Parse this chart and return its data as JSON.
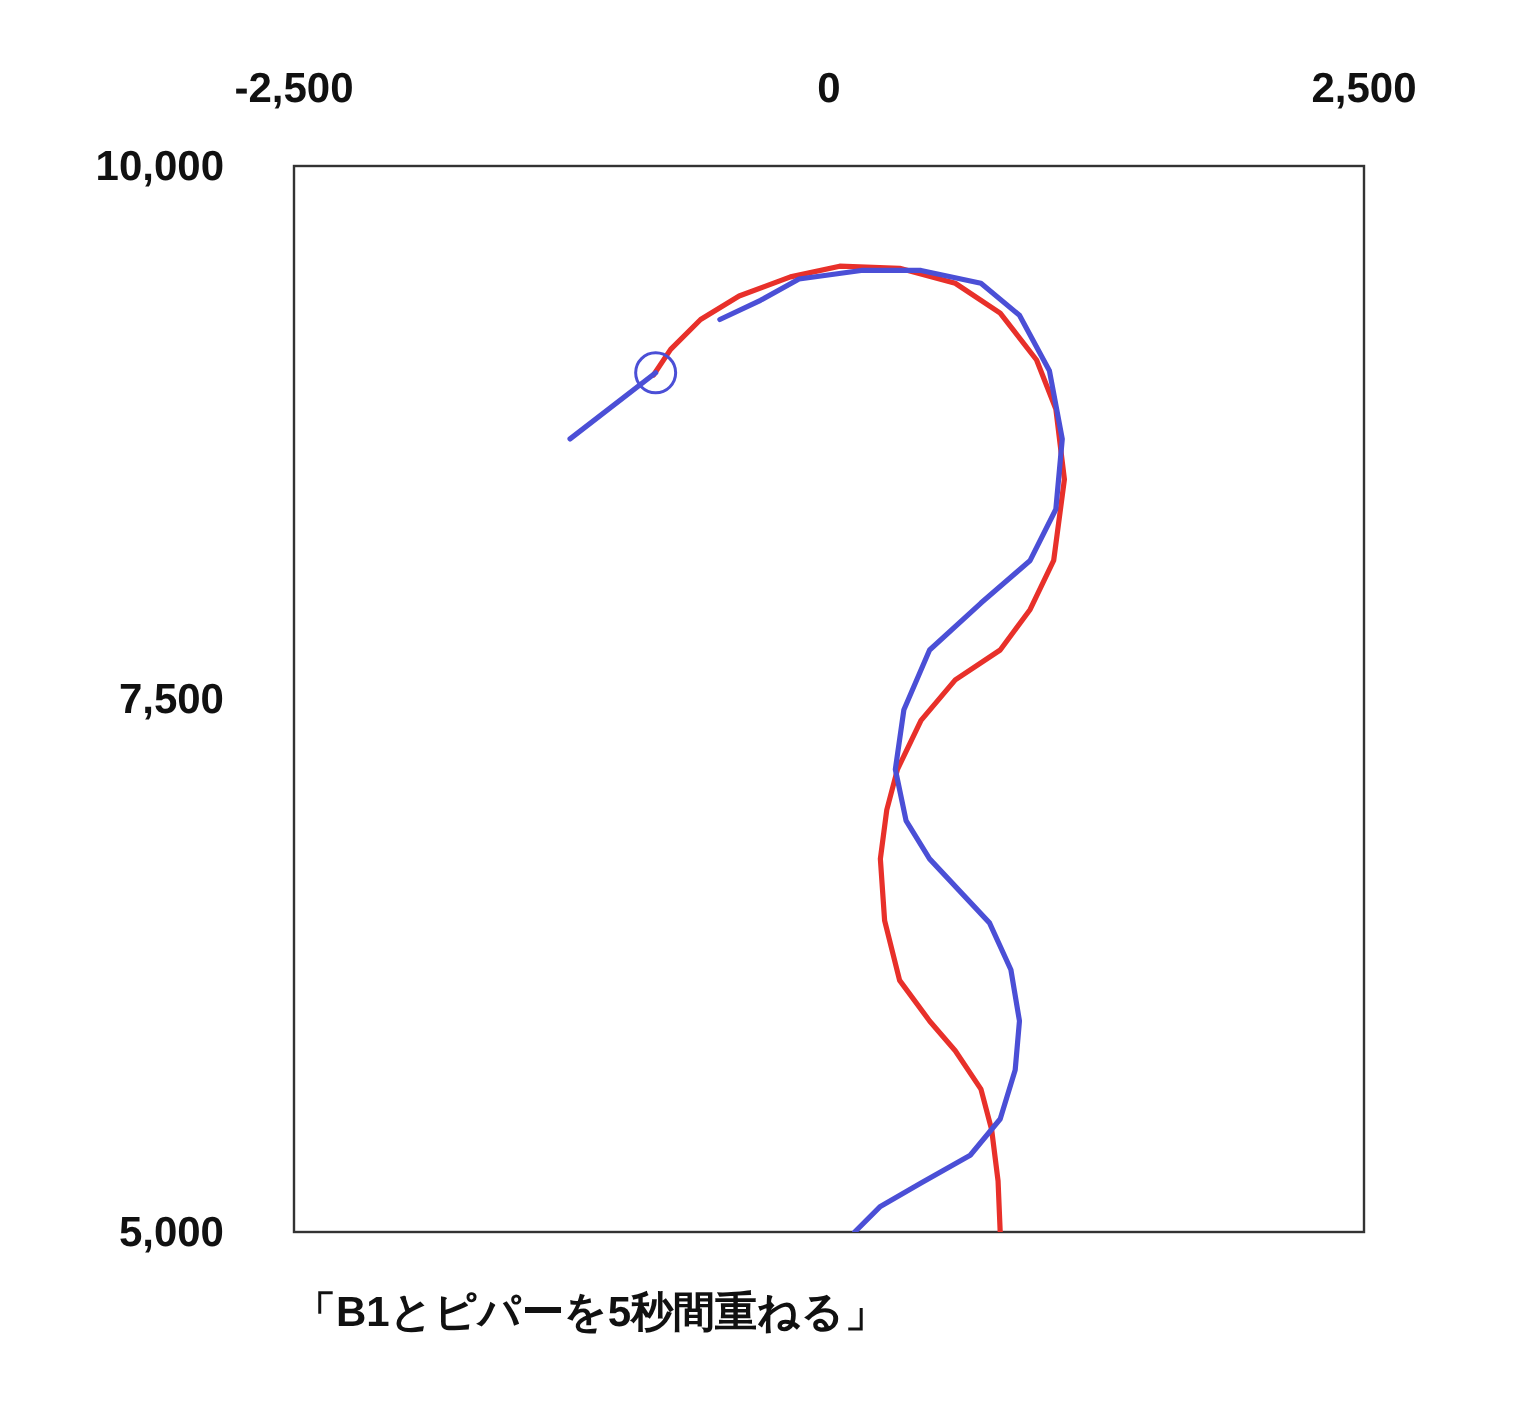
{
  "chart_data": {
    "type": "line",
    "xlim": [
      -2500,
      2500
    ],
    "ylim": [
      5000,
      10000
    ],
    "xticks": [
      {
        "value": -2500,
        "label": "-2,500"
      },
      {
        "value": 0,
        "label": "0"
      },
      {
        "value": 2500,
        "label": "2,500"
      }
    ],
    "yticks": [
      {
        "value": 5000,
        "label": "5,000"
      },
      {
        "value": 7500,
        "label": "7,500"
      },
      {
        "value": 10000,
        "label": "10,000"
      }
    ],
    "series": [
      {
        "color": "#e8302a",
        "x": [
          800,
          790,
          760,
          710,
          590,
          470,
          330,
          260,
          240,
          270,
          320,
          430,
          590,
          800,
          940,
          1050,
          1100,
          1060,
          970,
          800,
          590,
          330,
          50,
          -180,
          -420,
          -600,
          -740,
          -820
        ],
        "values": [
          5000,
          5240,
          5480,
          5670,
          5850,
          5990,
          6180,
          6460,
          6750,
          6980,
          7170,
          7400,
          7590,
          7730,
          7920,
          8150,
          8530,
          8860,
          9090,
          9310,
          9450,
          9520,
          9530,
          9480,
          9390,
          9280,
          9140,
          9020
        ]
      },
      {
        "color": "#4b4fd6",
        "x": [
          120,
          240,
          430,
          660,
          800,
          870,
          890,
          850,
          750,
          610,
          470,
          360,
          310,
          350,
          470,
          710,
          940,
          1060,
          1090,
          1030,
          890,
          710,
          430,
          150,
          -140,
          -320,
          -510
        ],
        "values": [
          5000,
          5120,
          5230,
          5360,
          5530,
          5760,
          5990,
          6230,
          6450,
          6600,
          6750,
          6930,
          7170,
          7450,
          7730,
          7950,
          8150,
          8390,
          8720,
          9040,
          9300,
          9450,
          9510,
          9510,
          9470,
          9370,
          9280
        ]
      },
      {
        "color": "#4b4fd6",
        "x": [
          -1210,
          -810
        ],
        "values": [
          8720,
          9030
        ]
      },
      {
        "type": "scatter",
        "marker": "circle",
        "color": "#4b4fd6",
        "x": [
          -810
        ],
        "values": [
          9030
        ]
      }
    ],
    "annotations": [
      "「B1とピパーを5秒間重ねる」"
    ]
  }
}
